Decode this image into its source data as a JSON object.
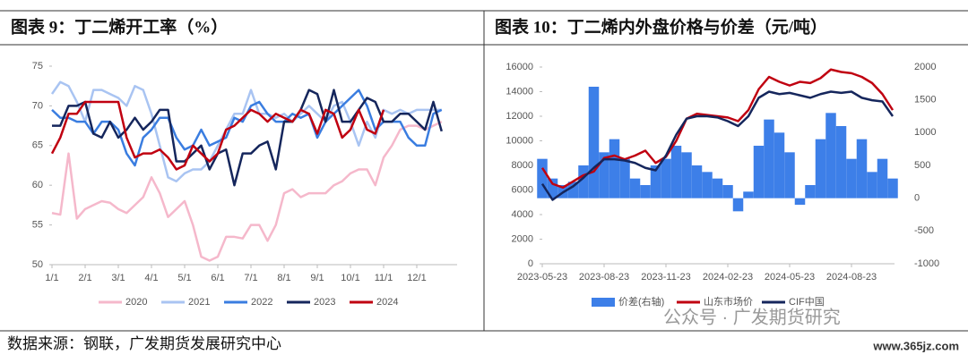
{
  "chart_data": [
    {
      "type": "line",
      "title": "图表 9：丁二烯开工率（%）",
      "categories": [
        "1/1",
        null,
        null,
        null,
        "2/1",
        null,
        null,
        null,
        "3/1",
        null,
        null,
        null,
        "4/1",
        null,
        null,
        null,
        "5/1",
        null,
        null,
        null,
        "6/1",
        null,
        null,
        null,
        "7/1",
        null,
        null,
        null,
        "8/1",
        null,
        null,
        null,
        "9/1",
        null,
        null,
        null,
        "10/1",
        null,
        null,
        null,
        "11/1",
        null,
        null,
        null,
        "12/1",
        null,
        null,
        null
      ],
      "ylim": [
        50,
        75
      ],
      "yticks": [
        50,
        55,
        60,
        65,
        70,
        75
      ],
      "series": [
        {
          "name": "2020",
          "color": "#f5b8cb",
          "values": [
            56.5,
            56.3,
            64,
            55.8,
            57,
            57.5,
            58,
            57.8,
            57,
            56.5,
            57.5,
            58.5,
            61,
            59,
            56,
            57,
            58,
            55,
            51,
            50.5,
            51,
            53.5,
            53.5,
            53.3,
            55,
            55,
            53,
            55,
            59,
            59.5,
            58.5,
            59,
            59,
            59,
            60,
            60.5,
            61.5,
            62,
            62,
            60,
            63.5,
            65,
            67,
            67.5,
            67.5,
            67,
            67.5,
            68
          ]
        },
        {
          "name": "2021",
          "color": "#a9c4f2",
          "values": [
            71.5,
            73,
            72.5,
            70.5,
            68,
            72,
            72,
            71.5,
            71,
            70,
            72.5,
            72,
            69,
            65,
            61,
            60.5,
            61.5,
            62,
            62,
            63,
            65,
            67,
            69,
            69,
            72,
            69,
            69,
            68.5,
            69,
            68,
            69,
            70,
            69,
            68,
            70,
            70.5,
            68,
            65,
            68,
            66,
            69.5,
            69,
            69.5,
            69,
            69.5,
            69.5,
            69.5,
            69.5
          ]
        },
        {
          "name": "2022",
          "color": "#3a7de0",
          "values": [
            69.5,
            68.5,
            68.5,
            68,
            68,
            66.5,
            68,
            68,
            67,
            64,
            62.5,
            66,
            67,
            68.5,
            68.5,
            66,
            64.5,
            65,
            67,
            65,
            65.5,
            66,
            68.5,
            68,
            70,
            70.5,
            69,
            68,
            68,
            69,
            68.5,
            69,
            66,
            68,
            69,
            70,
            71,
            72,
            70,
            67,
            68,
            68,
            68,
            66,
            65,
            65,
            69,
            69.5
          ]
        },
        {
          "name": "2023",
          "color": "#15265c",
          "values": [
            67.5,
            67.5,
            70,
            70,
            70.5,
            66.5,
            66,
            68,
            66,
            67,
            68.5,
            67,
            68,
            69.5,
            69.5,
            63,
            63,
            64,
            65,
            62,
            64,
            64.5,
            60,
            64,
            64,
            65,
            65.5,
            62,
            68,
            68,
            69.5,
            72,
            71.5,
            68,
            72,
            68,
            68,
            69.5,
            71,
            70.5,
            68,
            68,
            69,
            69,
            68,
            67,
            70.5,
            66.8
          ]
        },
        {
          "name": "2024",
          "color": "#c00010",
          "values": [
            64,
            66,
            69,
            69,
            70.5,
            70.5,
            70.5,
            70.5,
            70.5,
            66,
            63.5,
            64,
            64,
            64.5,
            63.5,
            62,
            62.5,
            65,
            64,
            63,
            64,
            67,
            67.5,
            68.5,
            69.5,
            69,
            68,
            69,
            68.5,
            68,
            69.5,
            69,
            66.5,
            69.5,
            69,
            66,
            67,
            69.5,
            67,
            66.5,
            69.5,
            null,
            null,
            null,
            null,
            null,
            null,
            null
          ]
        }
      ]
    },
    {
      "type": "combo",
      "title": "图表 10：丁二烯内外盘价格与价差（元/吨）",
      "categories": [
        "2023-05-23",
        null,
        null,
        null,
        null,
        null,
        "2023-08-23",
        null,
        null,
        null,
        null,
        null,
        "2023-11-23",
        null,
        null,
        null,
        null,
        null,
        "2024-02-23",
        null,
        null,
        null,
        null,
        null,
        "2024-05-23",
        null,
        null,
        null,
        null,
        null,
        "2024-08-23",
        null,
        null,
        null,
        null
      ],
      "ylim": [
        0,
        16000
      ],
      "yticks": [
        0,
        2000,
        4000,
        6000,
        8000,
        10000,
        12000,
        14000,
        16000
      ],
      "y2lim": [
        -1000,
        2000
      ],
      "y2ticks": [
        -1000,
        -500,
        0,
        500,
        1000,
        1500,
        2000
      ],
      "series": [
        {
          "name": "价差(右轴)",
          "type": "bar",
          "axis": "y2",
          "color": "#3d7fe8",
          "values": [
            600,
            300,
            200,
            250,
            500,
            1700,
            700,
            900,
            600,
            300,
            200,
            500,
            600,
            800,
            700,
            500,
            400,
            300,
            200,
            -200,
            100,
            800,
            1200,
            1000,
            700,
            -100,
            200,
            900,
            1300,
            1100,
            600,
            900,
            400,
            600,
            300
          ]
        },
        {
          "name": "山东市场价",
          "type": "line",
          "color": "#c00010",
          "values": [
            7800,
            6500,
            6200,
            6700,
            7200,
            7500,
            8600,
            8800,
            8500,
            8800,
            9200,
            8200,
            8700,
            10000,
            11800,
            12200,
            12100,
            12000,
            11900,
            11600,
            12500,
            14200,
            15200,
            14800,
            14500,
            14800,
            14700,
            15100,
            15800,
            15600,
            15500,
            15200,
            14700,
            13800,
            12500
          ]
        },
        {
          "name": "CIF中国",
          "type": "line",
          "color": "#15265c",
          "values": [
            6500,
            5200,
            5800,
            6300,
            7000,
            7800,
            8500,
            8500,
            8400,
            8200,
            7800,
            7600,
            8800,
            10500,
            11800,
            12000,
            12000,
            11900,
            11600,
            11200,
            12000,
            13500,
            14000,
            13800,
            13900,
            13700,
            13500,
            13800,
            14000,
            13900,
            14000,
            13500,
            13300,
            13200,
            12000
          ]
        }
      ]
    }
  ],
  "footer": "数据来源：钢联，广发期货发展研究中心",
  "watermark": [
    "公众号 · 广发期货研究",
    "www.365jz.com"
  ]
}
